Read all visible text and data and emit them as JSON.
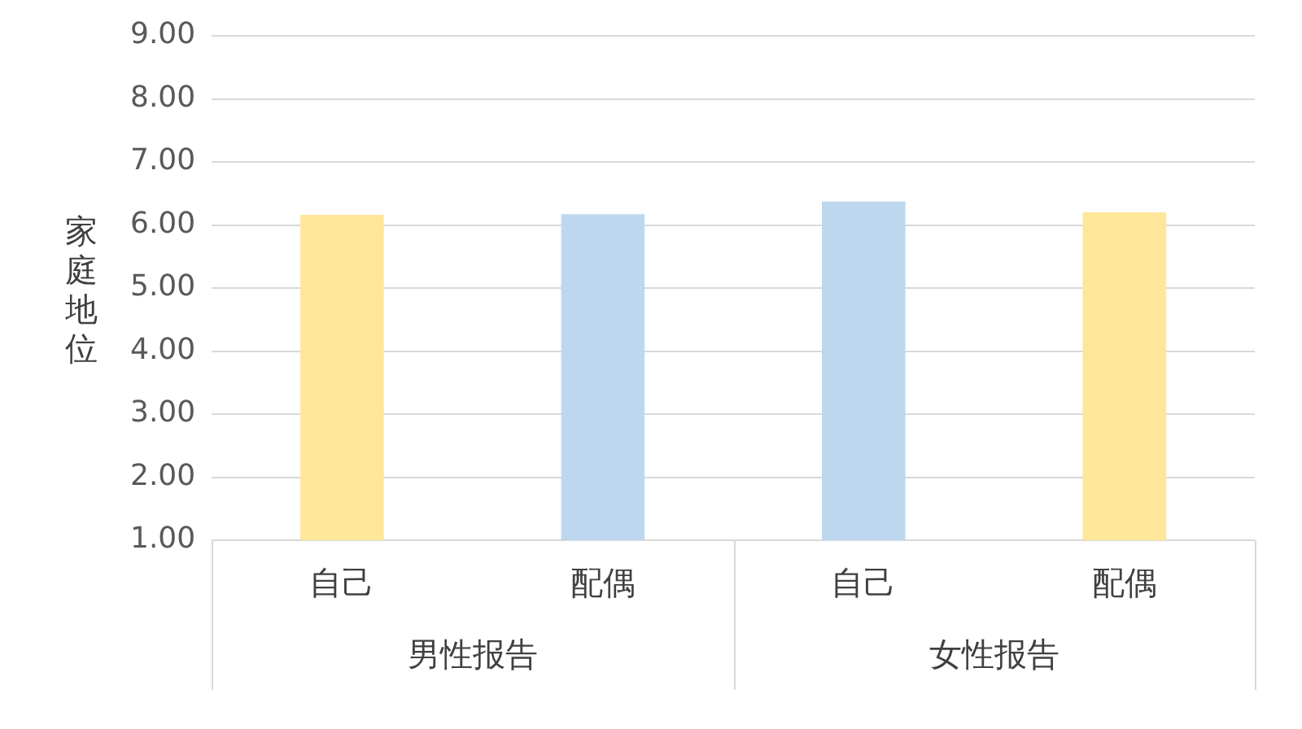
{
  "chart_data": {
    "type": "bar",
    "ylabel": "家庭地位",
    "categories": [
      "自己",
      "配偶",
      "自己",
      "配偶"
    ],
    "values": [
      6.16,
      6.17,
      6.37,
      6.2
    ],
    "colors": [
      "#ffe699",
      "#bdd7ee",
      "#bdd7ee",
      "#ffe699"
    ],
    "ylim": [
      1,
      9
    ],
    "yticks": [
      {
        "value": 1,
        "label": "1.00"
      },
      {
        "value": 2,
        "label": "2.00"
      },
      {
        "value": 3,
        "label": "3.00"
      },
      {
        "value": 4,
        "label": "4.00"
      },
      {
        "value": 5,
        "label": "5.00"
      },
      {
        "value": 6,
        "label": "6.00"
      },
      {
        "value": 7,
        "label": "7.00"
      },
      {
        "value": 8,
        "label": "8.00"
      },
      {
        "value": 9,
        "label": "9.00"
      }
    ],
    "grid": "y",
    "legend": false,
    "annotations": [
      "男性报告",
      "女性报告"
    ]
  }
}
